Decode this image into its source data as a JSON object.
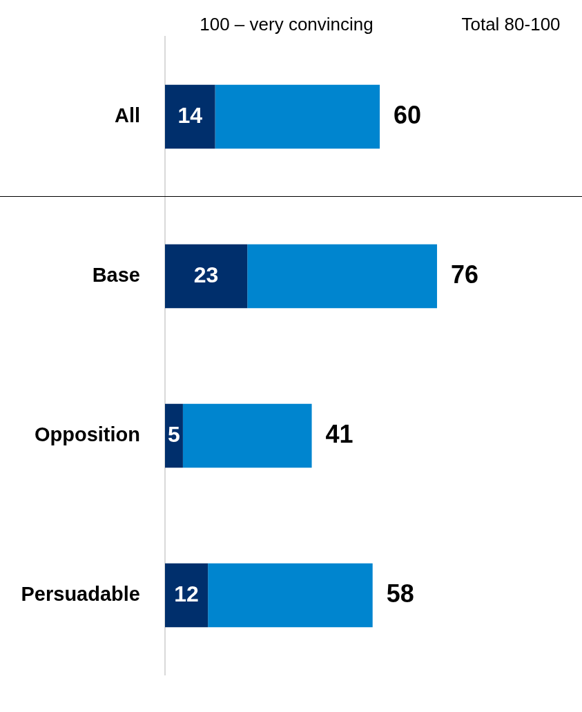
{
  "chart_data": {
    "type": "bar",
    "orientation": "horizontal",
    "stacked": true,
    "categories": [
      "All",
      "Base",
      "Opposition",
      "Persuadable"
    ],
    "series": [
      {
        "color": "#002f6c",
        "values": [
          14,
          23,
          5,
          12
        ],
        "value_labels": [
          "14",
          "23",
          "5",
          "12"
        ]
      },
      {
        "color": "#0085cf",
        "values": [
          46,
          53,
          36,
          46
        ]
      }
    ],
    "totals": [
      "60",
      "76",
      "41",
      "58"
    ],
    "annotations": [
      "100 – very convincing",
      "Total 80-100"
    ],
    "xlim": [
      0,
      116.5
    ],
    "tick_labels": "y",
    "grid": false,
    "legend": false
  }
}
